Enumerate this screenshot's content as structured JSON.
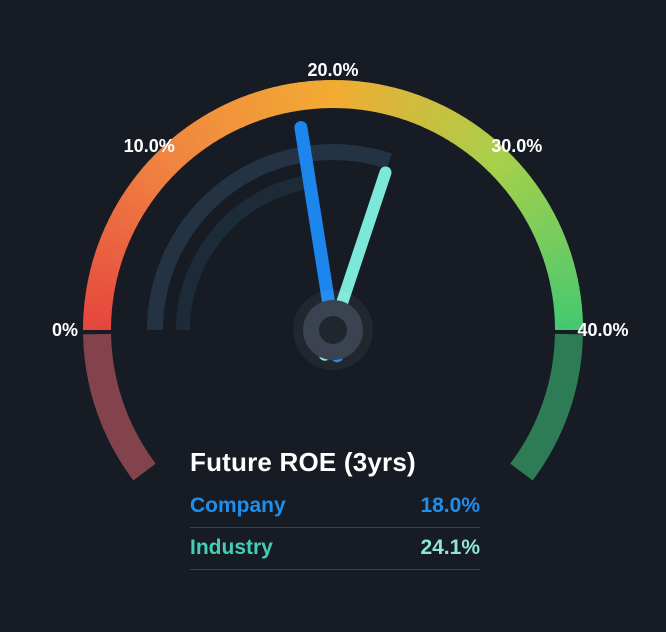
{
  "background": "#161b24",
  "chart_data": {
    "type": "gauge",
    "title": "Future ROE (3yrs)",
    "unit": "%",
    "min": 0,
    "max": 40,
    "start_angle_deg": 180,
    "end_angle_deg": 0,
    "ticks": [
      {
        "value": 0,
        "label": "0%"
      },
      {
        "value": 10,
        "label": "10.0%"
      },
      {
        "value": 20,
        "label": "20.0%"
      },
      {
        "value": 30,
        "label": "30.0%"
      },
      {
        "value": 40,
        "label": "40.0%"
      }
    ],
    "series": [
      {
        "name": "Company",
        "value": 18.0,
        "display": "18.0%",
        "color": "#1d86ec",
        "label_color": "#1f8fee",
        "value_color": "#1f8fee",
        "needle_length": 205,
        "needle_width": 13
      },
      {
        "name": "Industry",
        "value": 24.1,
        "display": "24.1%",
        "color": "#7ce8da",
        "label_color": "#46ceb5",
        "value_color": "#8fe5d8",
        "needle_length": 166,
        "needle_width": 12
      }
    ],
    "arc_color_stops": [
      {
        "at": 0.0,
        "color": "#e5463f"
      },
      {
        "at": 0.25,
        "color": "#f08441"
      },
      {
        "at": 0.5,
        "color": "#f2ab32"
      },
      {
        "at": 0.75,
        "color": "#a6d04b"
      },
      {
        "at": 1.0,
        "color": "#45c871"
      }
    ],
    "out_of_range": {
      "low_color": "#82434d",
      "high_color": "#2e7c55",
      "extent_deg": 36
    },
    "inner_track_outer_color": "#243343",
    "inner_track_inner_color": "#1d2a37",
    "hub_halo_color": "rgba(255,255,255,0.05)",
    "hub_outer_color": "#3a434f",
    "hub_inner_color": "#20262e",
    "tick_label_color": "#ffffff"
  },
  "panel": {
    "divider_color": "#39424d",
    "title_color": "#ffffff"
  }
}
